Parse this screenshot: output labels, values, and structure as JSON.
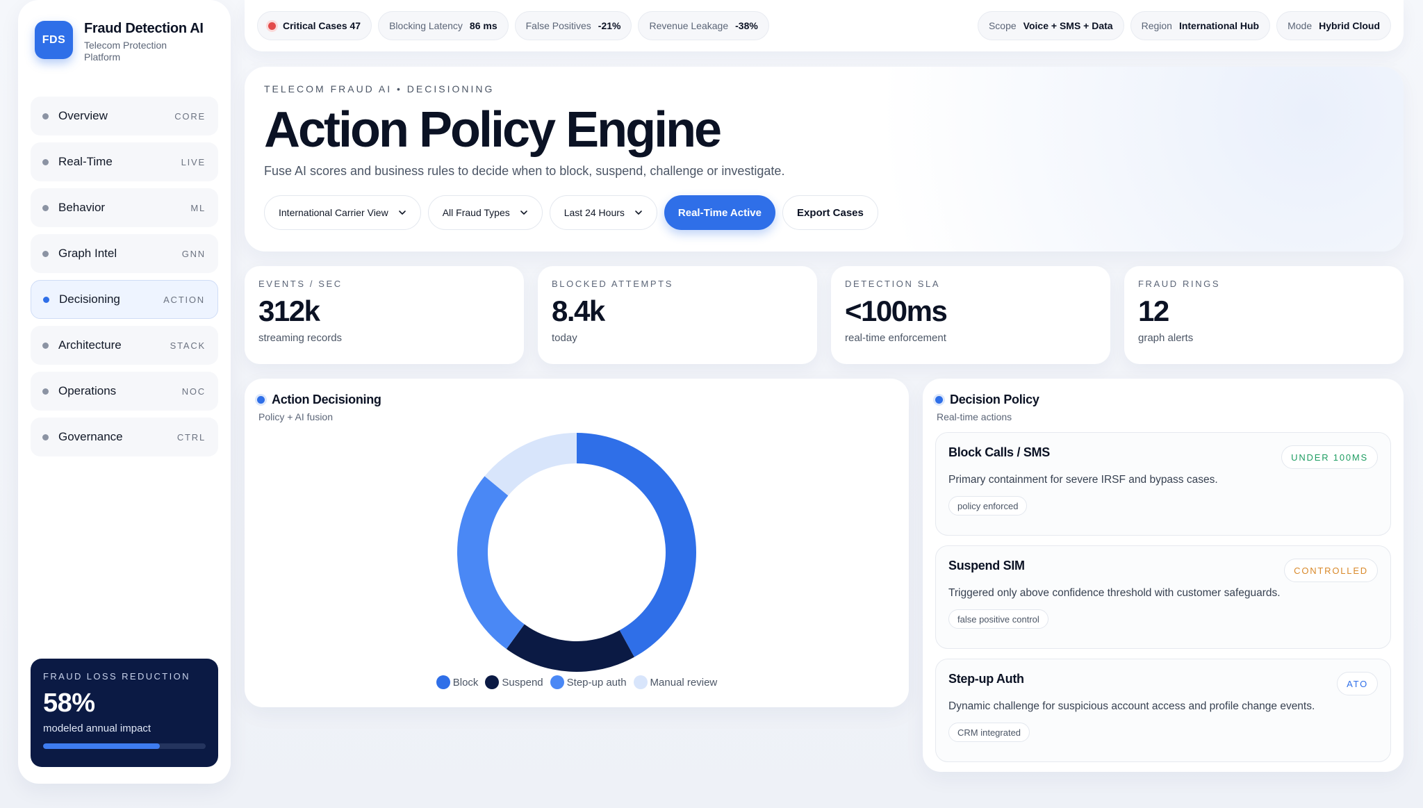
{
  "brand": {
    "logo": "FDS",
    "title": "Fraud Detection AI",
    "subtitle": "Telecom Protection Platform"
  },
  "nav": [
    {
      "label": "Overview",
      "tag": "CORE"
    },
    {
      "label": "Real-Time",
      "tag": "LIVE"
    },
    {
      "label": "Behavior",
      "tag": "ML"
    },
    {
      "label": "Graph Intel",
      "tag": "GNN"
    },
    {
      "label": "Decisioning",
      "tag": "ACTION",
      "active": true
    },
    {
      "label": "Architecture",
      "tag": "STACK"
    },
    {
      "label": "Operations",
      "tag": "NOC"
    },
    {
      "label": "Governance",
      "tag": "CTRL"
    }
  ],
  "impact": {
    "label": "FRAUD LOSS REDUCTION",
    "value": "58%",
    "sub": "modeled annual impact",
    "progress": 0.72
  },
  "topbar": {
    "critical": {
      "label": "Critical Cases",
      "value": "47"
    },
    "chips": [
      {
        "label": "Blocking Latency",
        "value": "86 ms"
      },
      {
        "label": "False Positives",
        "value": "-21%"
      },
      {
        "label": "Revenue Leakage",
        "value": "-38%"
      }
    ],
    "right_chips": [
      {
        "label": "Scope",
        "value": "Voice + SMS + Data"
      },
      {
        "label": "Region",
        "value": "International Hub"
      },
      {
        "label": "Mode",
        "value": "Hybrid Cloud"
      }
    ]
  },
  "hero": {
    "eyebrow": "TELECOM FRAUD AI • DECISIONING",
    "title": "Action Policy Engine",
    "description": "Fuse AI scores and business rules to decide when to block, suspend, challenge or investigate.",
    "selects": [
      "International Carrier View",
      "All Fraud Types",
      "Last 24 Hours"
    ],
    "primary_button": "Real-Time Active",
    "secondary_button": "Export Cases"
  },
  "kpis": [
    {
      "label": "EVENTS / SEC",
      "value": "312k",
      "sub": "streaming records"
    },
    {
      "label": "BLOCKED ATTEMPTS",
      "value": "8.4k",
      "sub": "today"
    },
    {
      "label": "DETECTION SLA",
      "value": "<100ms",
      "sub": "real-time enforcement"
    },
    {
      "label": "FRAUD RINGS",
      "value": "12",
      "sub": "graph alerts"
    }
  ],
  "action_panel": {
    "title": "Action Decisioning",
    "subtitle": "Policy + AI fusion"
  },
  "chart_data": {
    "type": "pie",
    "categories": [
      "Block",
      "Suspend",
      "Step-up auth",
      "Manual review"
    ],
    "values": [
      42,
      18,
      26,
      14
    ],
    "colors": [
      "#2f6fe8",
      "#0b1a44",
      "#4a88f5",
      "#d8e5fb"
    ],
    "title": "",
    "legend": "bottom"
  },
  "policy_panel": {
    "title": "Decision Policy",
    "subtitle": "Real-time actions",
    "items": [
      {
        "title": "Block Calls / SMS",
        "badge": "UNDER 100MS",
        "badge_color": "#1f9d62",
        "description": "Primary containment for severe IRSF and bypass cases.",
        "tag": "policy enforced"
      },
      {
        "title": "Suspend SIM",
        "badge": "CONTROLLED",
        "badge_color": "#d9892a",
        "description": "Triggered only above confidence threshold with customer safeguards.",
        "tag": "false positive control"
      },
      {
        "title": "Step-up Auth",
        "badge": "ATO",
        "badge_color": "#2f6fe8",
        "description": "Dynamic challenge for suspicious account access and profile change events.",
        "tag": "CRM integrated"
      }
    ]
  }
}
